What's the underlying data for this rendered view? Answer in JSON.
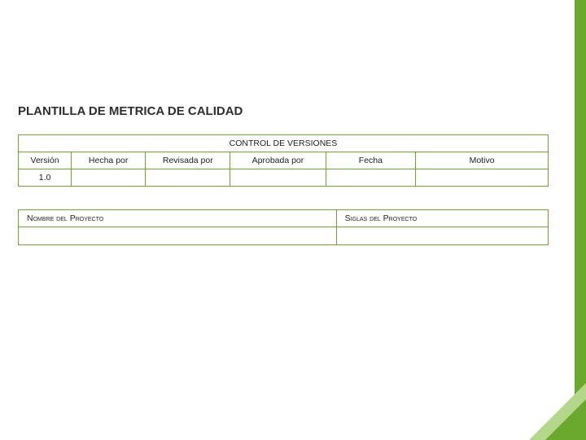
{
  "title": "PLANTILLA DE METRICA DE CALIDAD",
  "versions_table": {
    "caption": "CONTROL DE VERSIONES",
    "columns": [
      "Versión",
      "Hecha por",
      "Revisada por",
      "Aprobada por",
      "Fecha",
      "Motivo"
    ],
    "col_widths_pct": [
      10,
      14,
      16,
      18,
      17,
      25
    ],
    "rows": [
      [
        "1.0",
        "",
        "",
        "",
        "",
        ""
      ]
    ]
  },
  "project_table": {
    "left_header": "Nombre del Proyecto",
    "right_header": "Siglas del Proyecto",
    "left_width_pct": 60,
    "right_width_pct": 40,
    "rows": [
      [
        "",
        ""
      ]
    ]
  },
  "colors": {
    "accent": "#6ba82e",
    "accent_light": "#b4d88b",
    "text": "#2e2e2e",
    "border": "#6ba82e",
    "background": "#ffffff"
  }
}
